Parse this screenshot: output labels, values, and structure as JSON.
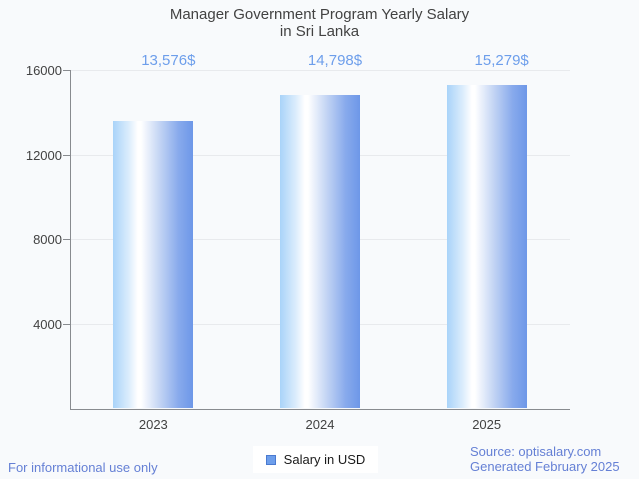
{
  "chart_data": {
    "type": "bar",
    "title": "Manager Government Program Yearly Salary in Sri Lanka",
    "title_lines": [
      "Manager Government Program Yearly Salary",
      "in Sri Lanka"
    ],
    "categories": [
      "2023",
      "2024",
      "2025"
    ],
    "series": [
      {
        "name": "Salary in USD",
        "values": [
          13576,
          14798,
          15279
        ]
      }
    ],
    "value_labels": [
      "13,576$",
      "14,798$",
      "15,279$"
    ],
    "xlabel": "",
    "ylabel": "",
    "ylim": [
      0,
      16000
    ],
    "yticks": [
      4000,
      8000,
      12000,
      16000
    ],
    "ytick_labels": [
      "4000",
      "8000",
      "12000",
      "16000"
    ],
    "grid": true,
    "legend_position": "bottom"
  },
  "legend": {
    "label": "Salary in USD",
    "swatch_color": "#6d9eeb"
  },
  "footer": {
    "left": "For informational use only",
    "source": "Source: optisalary.com",
    "generated": "Generated February 2025"
  },
  "colors": {
    "background": "#f8fafc",
    "title_text": "#424242",
    "axis_text": "#424242",
    "value_label_text": "#6d9eeb",
    "footer_text": "#6580d5",
    "gridline": "#e8eaed",
    "axis_line": "#888b8f",
    "bar_gradient_left": "#a9d3f9",
    "bar_gradient_mid": "#ffffff",
    "bar_gradient_right": "#6d97e8"
  }
}
